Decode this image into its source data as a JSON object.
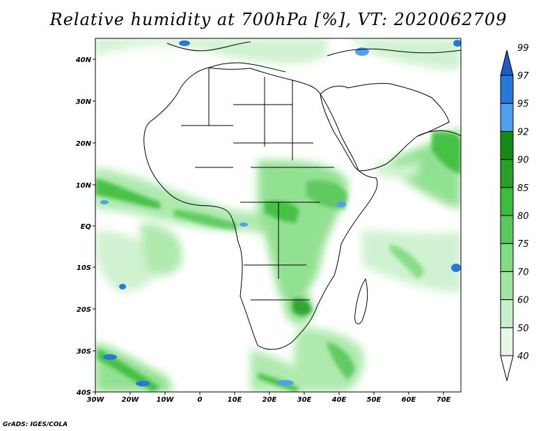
{
  "title": "Relative humidity at 700hPa [%], VT: 2020062709",
  "credit": "GrADS: IGES/COLA",
  "map": {
    "region": "Africa",
    "lon_range": [
      -30,
      75
    ],
    "lat_range": [
      -40,
      45
    ],
    "x_ticks": [
      "30W",
      "20W",
      "10W",
      "0",
      "10E",
      "20E",
      "30E",
      "40E",
      "50E",
      "60E",
      "70E"
    ],
    "y_ticks": [
      "40N",
      "30N",
      "20N",
      "10N",
      "EQ",
      "10S",
      "20S",
      "30S",
      "40S"
    ]
  },
  "colorbar": {
    "levels": [
      "40",
      "50",
      "60",
      "70",
      "75",
      "80",
      "85",
      "90",
      "92",
      "95",
      "97",
      "99"
    ],
    "colors": [
      "#ffffff",
      "#e6f8e6",
      "#c8f0c8",
      "#a0e6a0",
      "#80dc80",
      "#5ac85a",
      "#3cbe3c",
      "#28a028",
      "#148c14",
      "#50a0f0",
      "#2878dc",
      "#1e5ac8"
    ]
  }
}
